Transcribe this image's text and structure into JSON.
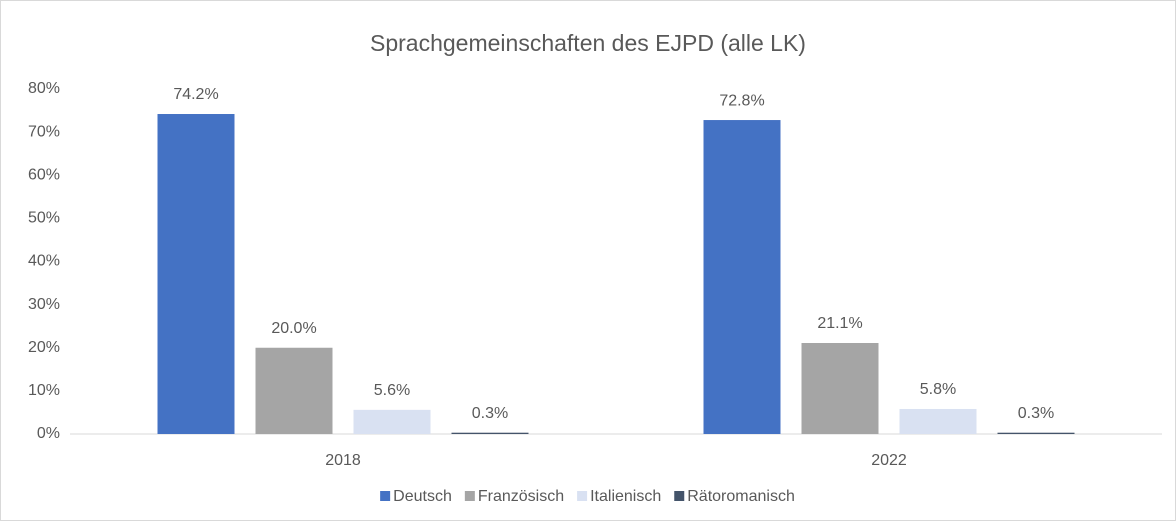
{
  "chart_data": {
    "type": "bar",
    "title": "Sprachgemeinschaften des EJPD (alle LK)",
    "categories": [
      "2018",
      "2022"
    ],
    "series": [
      {
        "name": "Deutsch",
        "color": "#4472c4",
        "values": [
          74.2,
          72.8
        ],
        "value_labels": [
          "74.2%",
          "72.8%"
        ]
      },
      {
        "name": "Französisch",
        "color": "#a5a5a5",
        "values": [
          20.0,
          21.1
        ],
        "value_labels": [
          "20.0%",
          "21.1%"
        ]
      },
      {
        "name": "Italienisch",
        "color": "#d9e1f2",
        "values": [
          5.6,
          5.8
        ],
        "value_labels": [
          "5.6%",
          "5.8%"
        ]
      },
      {
        "name": "Rätoromanisch",
        "color": "#44546a",
        "values": [
          0.3,
          0.3
        ],
        "value_labels": [
          "0.3%",
          "0.3%"
        ]
      }
    ],
    "ylim": [
      0,
      80
    ],
    "yticks": [
      {
        "value": 0,
        "label": "0%"
      },
      {
        "value": 10,
        "label": "10%"
      },
      {
        "value": 20,
        "label": "20%"
      },
      {
        "value": 30,
        "label": "30%"
      },
      {
        "value": 40,
        "label": "40%"
      },
      {
        "value": 50,
        "label": "50%"
      },
      {
        "value": 60,
        "label": "60%"
      },
      {
        "value": 70,
        "label": "70%"
      },
      {
        "value": 80,
        "label": "80%"
      }
    ],
    "grid": false,
    "legend": "bottom"
  }
}
